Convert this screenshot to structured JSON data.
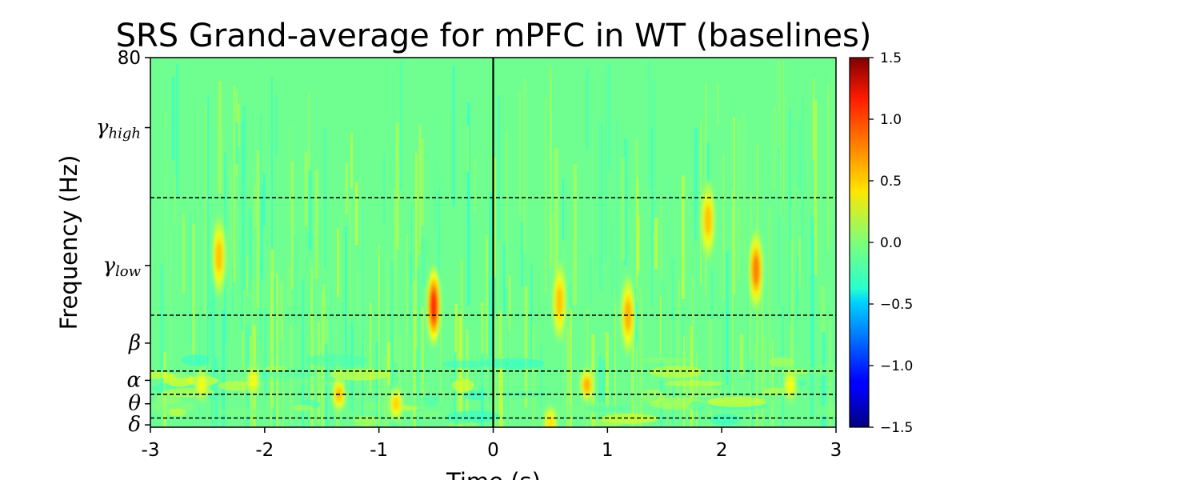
{
  "chart_data": {
    "type": "heatmap",
    "title": "SRS Grand-average for mPFC in WT (baselines)",
    "xlabel": "Time (s)",
    "ylabel": "Frequency (Hz)",
    "xlim": [
      -3,
      3
    ],
    "ylim": [
      0,
      80
    ],
    "x_ticks": [
      {
        "value": -3,
        "label": "-3"
      },
      {
        "value": -2,
        "label": "-2"
      },
      {
        "value": -1,
        "label": "-1"
      },
      {
        "value": 0,
        "label": "0"
      },
      {
        "value": 1,
        "label": "1"
      },
      {
        "value": 2,
        "label": "2"
      },
      {
        "value": 3,
        "label": "3"
      }
    ],
    "y_ticks": [
      {
        "value": 80,
        "label": "80",
        "main": "80",
        "sub": ""
      },
      {
        "value": 65,
        "label": "γhigh",
        "main": "γ",
        "sub": "high"
      },
      {
        "value": 35,
        "label": "γlow",
        "main": "γ",
        "sub": "low"
      },
      {
        "value": 18,
        "label": "β",
        "main": "β",
        "sub": ""
      },
      {
        "value": 10,
        "label": "α",
        "main": "α",
        "sub": ""
      },
      {
        "value": 5,
        "label": "θ",
        "main": "θ",
        "sub": ""
      },
      {
        "value": 0.5,
        "label": "δ",
        "main": "δ",
        "sub": ""
      }
    ],
    "band_boundaries_hz": [
      2,
      7,
      12,
      24,
      50
    ],
    "event_line_time": 0,
    "colorbar": {
      "colormap": "jet",
      "range": [
        -1.5,
        1.5
      ],
      "ticks": [
        {
          "value": 1.5,
          "label": "1.5"
        },
        {
          "value": 1.0,
          "label": "1.0"
        },
        {
          "value": 0.5,
          "label": "0.5"
        },
        {
          "value": 0.0,
          "label": "0.0"
        },
        {
          "value": -0.5,
          "label": "−0.5"
        },
        {
          "value": -1.0,
          "label": "−1.0"
        },
        {
          "value": -1.5,
          "label": "−1.5"
        }
      ]
    },
    "background_value": -0.05,
    "hotspots": [
      {
        "time": -2.4,
        "freq": 37,
        "value": 0.55
      },
      {
        "time": -0.52,
        "freq": 26,
        "value": 1.0
      },
      {
        "time": 0.58,
        "freq": 27,
        "value": 0.55
      },
      {
        "time": 0.82,
        "freq": 9,
        "value": 0.6
      },
      {
        "time": 1.18,
        "freq": 24,
        "value": 0.6
      },
      {
        "time": 1.88,
        "freq": 45,
        "value": 0.55
      },
      {
        "time": 2.3,
        "freq": 34,
        "value": 0.75
      },
      {
        "time": -1.35,
        "freq": 7,
        "value": 0.55
      },
      {
        "time": -0.85,
        "freq": 5,
        "value": 0.5
      },
      {
        "time": 0.5,
        "freq": 1,
        "value": 0.45
      },
      {
        "time": -2.55,
        "freq": 9,
        "value": 0.35
      },
      {
        "time": -2.1,
        "freq": 10,
        "value": 0.35
      },
      {
        "time": 2.6,
        "freq": 9,
        "value": 0.35
      }
    ]
  }
}
